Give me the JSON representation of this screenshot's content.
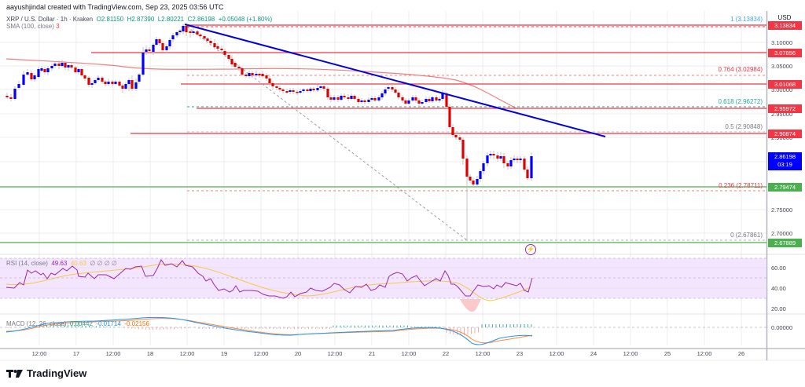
{
  "header": {
    "credit": "aayushjindal created with TradingView.com, Sep 23, 2025 03:56 UTC",
    "symbol": "XRP / U.S. Dollar · 1h · Kraken",
    "open": "O2.81150",
    "high": "H2.87390",
    "low": "L2.80221",
    "close": "C2.86198",
    "change": "+0.05048 (+1.80%)",
    "sma_label": "SMA (100, close)",
    "sma_value": "3"
  },
  "price_axis": {
    "currency_button": "USD",
    "ticks": [
      "3.10000",
      "3.05000",
      "3.00000",
      "2.95000",
      "2.90000",
      "2.75000",
      "2.70000"
    ],
    "tags": [
      {
        "value": "3.13834",
        "color": "#f23645"
      },
      {
        "value": "3.07856",
        "color": "#f23645"
      },
      {
        "value": "3.01068",
        "color": "#f23645"
      },
      {
        "value": "2.95972",
        "color": "#f23645"
      },
      {
        "value": "2.90874",
        "color": "#f23645"
      },
      {
        "value": "2.86198",
        "sub": "03:19",
        "color": "#0000ff"
      },
      {
        "value": "2.79474",
        "color": "#4caf50"
      },
      {
        "value": "2.67889",
        "color": "#4caf50"
      }
    ]
  },
  "fibonacci": [
    {
      "level": "1 (3.13834)",
      "color": "#42a5f5"
    },
    {
      "level": "0.764 (3.02984)",
      "color": "#f23645"
    },
    {
      "level": "0.618 (2.96272)",
      "color": "#26a69a"
    },
    {
      "level": "0.5 (2.90848)",
      "color": "#787b86"
    },
    {
      "level": "0.236 (2.78711)",
      "color": "#f23645"
    },
    {
      "level": "0 (2.67861)",
      "color": "#787b86"
    }
  ],
  "rsi": {
    "label": "RSI (14, close)",
    "value": "49.63",
    "ma": "40.63",
    "extras": "∅ ∅ ∅ ∅",
    "ticks": [
      "60.00",
      "40.00",
      "20.00"
    ]
  },
  "macd": {
    "label": "MACD (12, 26, close)",
    "hist": "0.00442",
    "macd": "-0.01714",
    "signal": "-0.02156",
    "ticks": [
      "0.00000"
    ]
  },
  "time_axis": [
    "12:00",
    "17",
    "12:00",
    "18",
    "12:00",
    "19",
    "12:00",
    "20",
    "12:00",
    "21",
    "12:00",
    "22",
    "12:00",
    "23",
    "12:00",
    "24",
    "12:00",
    "25",
    "12:00",
    "26"
  ],
  "brand": "TradingView",
  "colors": {
    "bull": "#0000ff",
    "bear": "#e00000",
    "trendline": "#0000e0",
    "resistance": "#f23645",
    "support": "#4caf50",
    "sma": "#f08080",
    "rsi_band": "#f3e5fd"
  },
  "chart_data": {
    "type": "candlestick",
    "title": "XRP / U.S. Dollar · 1h · Kraken",
    "xlabel": "",
    "ylabel": "USD",
    "ylim": [
      2.66,
      3.15
    ],
    "x_ticks": [
      "12:00",
      "17",
      "12:00",
      "18",
      "12:00",
      "19",
      "12:00",
      "20",
      "12:00",
      "21",
      "12:00",
      "22",
      "12:00",
      "23",
      "12:00",
      "24",
      "12:00",
      "25",
      "12:00",
      "26"
    ],
    "last": {
      "open": 2.8115,
      "high": 2.8739,
      "low": 2.80221,
      "close": 2.86198,
      "change": 0.05048,
      "change_pct": 1.8
    },
    "approx_close_path": [
      {
        "t": "Sep 16 06:00",
        "close": 2.99
      },
      {
        "t": "Sep 16 18:00",
        "close": 3.05
      },
      {
        "t": "Sep 17 06:00",
        "close": 3.06
      },
      {
        "t": "Sep 17 18:00",
        "close": 3.0
      },
      {
        "t": "Sep 18 00:00",
        "close": 3.05
      },
      {
        "t": "Sep 18 12:00",
        "close": 3.138
      },
      {
        "t": "Sep 19 00:00",
        "close": 3.07
      },
      {
        "t": "Sep 19 12:00",
        "close": 3.02
      },
      {
        "t": "Sep 20 00:00",
        "close": 2.99
      },
      {
        "t": "Sep 20 12:00",
        "close": 2.99
      },
      {
        "t": "Sep 21 06:00",
        "close": 3.01
      },
      {
        "t": "Sep 21 18:00",
        "close": 2.99
      },
      {
        "t": "Sep 22 00:00",
        "close": 2.9
      },
      {
        "t": "Sep 22 06:00",
        "close": 2.8
      },
      {
        "t": "Sep 22 12:00",
        "close": 2.85
      },
      {
        "t": "Sep 22 18:00",
        "close": 2.84
      },
      {
        "t": "Sep 23 03:00",
        "close": 2.862
      }
    ],
    "horizontal_levels": {
      "resistance": [
        3.13834,
        3.07856,
        3.01068,
        2.95972,
        2.90874
      ],
      "support": [
        2.79474,
        2.67889
      ]
    },
    "fib_levels": [
      {
        "ratio": 1,
        "price": 3.13834
      },
      {
        "ratio": 0.764,
        "price": 3.02984
      },
      {
        "ratio": 0.618,
        "price": 2.96272
      },
      {
        "ratio": 0.5,
        "price": 2.90848
      },
      {
        "ratio": 0.236,
        "price": 2.78711
      },
      {
        "ratio": 0,
        "price": 2.67861
      }
    ],
    "trendline": {
      "from": {
        "t": "Sep 18 12:00",
        "price": 3.138
      },
      "to": {
        "t": "Sep 24 06:00",
        "price": 2.89
      }
    },
    "sma_100": {
      "approx": "declining from ~3.06 to ~2.96"
    },
    "indicators": {
      "rsi": {
        "period": 14,
        "value": 49.63,
        "ma": 40.63,
        "band": [
          30,
          70
        ]
      },
      "macd": {
        "fast": 12,
        "slow": 26,
        "hist": 0.00442,
        "macd": -0.01714,
        "signal": -0.02156
      }
    }
  }
}
